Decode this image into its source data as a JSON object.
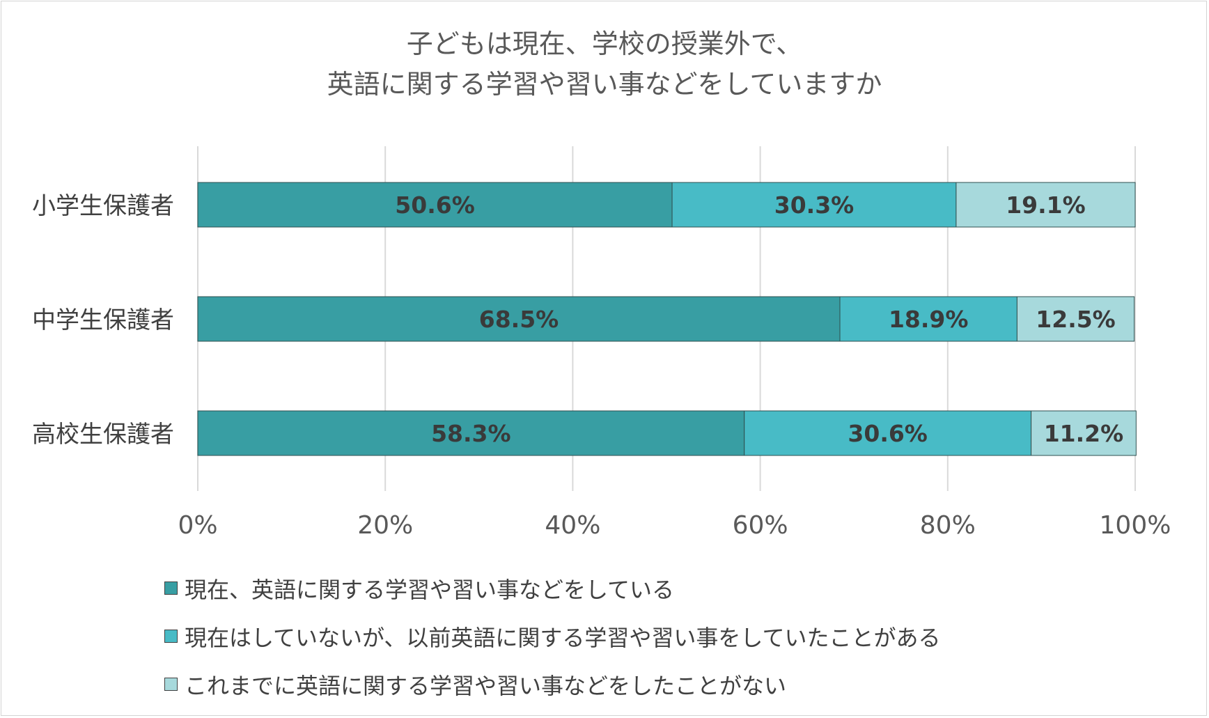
{
  "chart_data": {
    "type": "bar",
    "orientation": "horizontal",
    "stacked": true,
    "title": [
      "子どもは現在、学校の授業外で、",
      "英語に関する学習や習い事などをしていますか"
    ],
    "categories": [
      "小学生保護者",
      "中学生保護者",
      "高校生保護者"
    ],
    "series": [
      {
        "name": "現在、英語に関する学習や習い事などをしている",
        "values": [
          50.6,
          68.5,
          58.3
        ],
        "labels": [
          "50.6%",
          "68.5%",
          "58.3%"
        ],
        "color": "#389ea3"
      },
      {
        "name": "現在はしていないが、以前英語に関する学習や習い事をしていたことがある",
        "values": [
          30.3,
          18.9,
          30.6
        ],
        "labels": [
          "30.3%",
          "18.9%",
          "30.6%"
        ],
        "color": "#48bbc6"
      },
      {
        "name": "これまでに英語に関する学習や習い事などをしたことがない",
        "values": [
          19.1,
          12.5,
          11.2
        ],
        "labels": [
          "19.1%",
          "12.5%",
          "11.2%"
        ],
        "color": "#a7d9dc"
      }
    ],
    "x_ticks": [
      "0%",
      "20%",
      "40%",
      "60%",
      "80%",
      "100%"
    ],
    "xlim": [
      0,
      100
    ],
    "grid": true,
    "legend_position": "bottom"
  }
}
